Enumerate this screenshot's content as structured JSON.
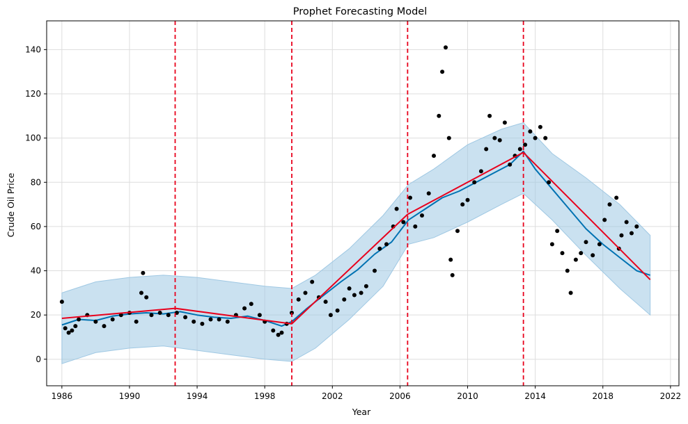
{
  "chart_data": {
    "type": "line",
    "title": "Prophet Forecasting Model",
    "xlabel": "Year",
    "ylabel": "Crude Oil Price",
    "xlim": [
      1985.1,
      2022.5
    ],
    "ylim": [
      -12,
      153
    ],
    "x_ticks": [
      1986,
      1990,
      1994,
      1998,
      2002,
      2006,
      2010,
      2014,
      2018,
      2022
    ],
    "y_ticks": [
      0,
      20,
      40,
      60,
      80,
      100,
      120,
      140
    ],
    "grid": true,
    "legend": "none",
    "colors": {
      "observed": "#000000",
      "forecast": "#0072B2",
      "interval": "#9fc8e3",
      "trend": "#e8001c",
      "changepoint": "#e8001c"
    },
    "series": [
      {
        "role": "observed",
        "x": [
          1986.0,
          1986.2,
          1986.4,
          1986.6,
          1986.8,
          1987.0,
          1987.5,
          1988.0,
          1988.5,
          1989.0,
          1989.5,
          1990.0,
          1990.4,
          1990.7,
          1990.8,
          1991.0,
          1991.3,
          1991.8,
          1992.3,
          1992.8,
          1993.3,
          1993.8,
          1994.3,
          1994.8,
          1995.3,
          1995.8,
          1996.3,
          1996.8,
          1997.2,
          1997.7,
          1998.0,
          1998.5,
          1998.8,
          1999.0,
          1999.3,
          1999.6,
          2000.0,
          2000.4,
          2000.8,
          2001.2,
          2001.6,
          2001.9,
          2002.3,
          2002.7,
          2003.0,
          2003.3,
          2003.7,
          2004.0,
          2004.5,
          2004.8,
          2005.2,
          2005.6,
          2005.8,
          2006.2,
          2006.6,
          2006.9,
          2007.3,
          2007.7,
          2008.0,
          2008.3,
          2008.5,
          2008.7,
          2008.9,
          2009.0,
          2009.1,
          2009.4,
          2009.7,
          2010.0,
          2010.4,
          2010.8,
          2011.1,
          2011.3,
          2011.6,
          2011.9,
          2012.2,
          2012.5,
          2012.8,
          2013.1,
          2013.4,
          2013.7,
          2014.0,
          2014.3,
          2014.6,
          2014.8,
          2015.0,
          2015.3,
          2015.6,
          2015.9,
          2016.1,
          2016.4,
          2016.7,
          2017.0,
          2017.4,
          2017.8,
          2018.1,
          2018.4,
          2018.8,
          2018.95,
          2019.1,
          2019.4,
          2019.7,
          2020.0
        ],
        "y": [
          26,
          14,
          12,
          13,
          15,
          18,
          20,
          17,
          15,
          18,
          20,
          21,
          17,
          30,
          39,
          28,
          20,
          21,
          20,
          21,
          19,
          17,
          16,
          18,
          18,
          17,
          20,
          23,
          25,
          20,
          17,
          13,
          11,
          12,
          16,
          21,
          27,
          30,
          35,
          28,
          26,
          20,
          22,
          27,
          32,
          29,
          30,
          33,
          40,
          50,
          52,
          60,
          68,
          62,
          73,
          60,
          65,
          75,
          92,
          110,
          130,
          141,
          100,
          45,
          38,
          58,
          70,
          72,
          80,
          85,
          95,
          110,
          100,
          99,
          107,
          88,
          92,
          95,
          97,
          103,
          100,
          105,
          100,
          80,
          52,
          58,
          48,
          40,
          30,
          45,
          48,
          53,
          47,
          52,
          63,
          70,
          73,
          50,
          56,
          62,
          57,
          60
        ]
      },
      {
        "role": "forecast",
        "x": [
          1986.0,
          1987.0,
          1988.0,
          1989.0,
          1990.0,
          1991.0,
          1992.0,
          1993.0,
          1994.0,
          1995.0,
          1996.0,
          1997.0,
          1998.0,
          1999.0,
          1999.6,
          2000.5,
          2001.5,
          2002.5,
          2003.5,
          2004.5,
          2005.5,
          2006.5,
          2007.5,
          2008.5,
          2009.5,
          2010.5,
          2011.5,
          2012.5,
          2013.3,
          2014.0,
          2015.0,
          2016.0,
          2017.0,
          2018.0,
          2019.0,
          2020.0,
          2020.8
        ],
        "y": [
          15.5,
          18.0,
          17.5,
          19.5,
          20.5,
          21.0,
          20.5,
          21.5,
          20.0,
          19.0,
          18.5,
          19.5,
          17.5,
          15.0,
          17.0,
          23.0,
          29.0,
          35.0,
          40.5,
          47.5,
          53.0,
          63.0,
          68.0,
          73.0,
          76.0,
          80.0,
          84.0,
          88.0,
          94.0,
          86.0,
          77.0,
          68.0,
          59.0,
          52.0,
          46.0,
          40.0,
          38.0
        ]
      },
      {
        "role": "trend",
        "x": [
          1986.0,
          1992.7,
          1999.6,
          2006.45,
          2013.3,
          2020.8
        ],
        "y": [
          18.5,
          23.0,
          16.0,
          65.5,
          93.5,
          36.0
        ]
      },
      {
        "role": "interval-upper",
        "x": [
          1986.0,
          1988.0,
          1990.0,
          1992.0,
          1994.0,
          1996.0,
          1998.0,
          1999.6,
          2001.0,
          2003.0,
          2005.0,
          2006.5,
          2008.0,
          2010.0,
          2012.0,
          2013.3,
          2015.0,
          2017.0,
          2019.0,
          2020.8
        ],
        "y": [
          30,
          35,
          37,
          38,
          37,
          35,
          33,
          32,
          38,
          50,
          65,
          79,
          86,
          97,
          104,
          107,
          93,
          82,
          70,
          56
        ]
      },
      {
        "role": "interval-lower",
        "x": [
          1986.0,
          1988.0,
          1990.0,
          1992.0,
          1994.0,
          1996.0,
          1998.0,
          1999.6,
          2001.0,
          2003.0,
          2005.0,
          2006.5,
          2008.0,
          2010.0,
          2012.0,
          2013.3,
          2015.0,
          2017.0,
          2019.0,
          2020.8
        ],
        "y": [
          -2,
          3,
          5,
          6,
          4,
          2,
          0,
          -1,
          5,
          18,
          33,
          52,
          55,
          62,
          70,
          75,
          63,
          47,
          32,
          20
        ]
      }
    ],
    "changepoints": [
      1992.7,
      1999.6,
      2006.45,
      2013.3
    ]
  }
}
